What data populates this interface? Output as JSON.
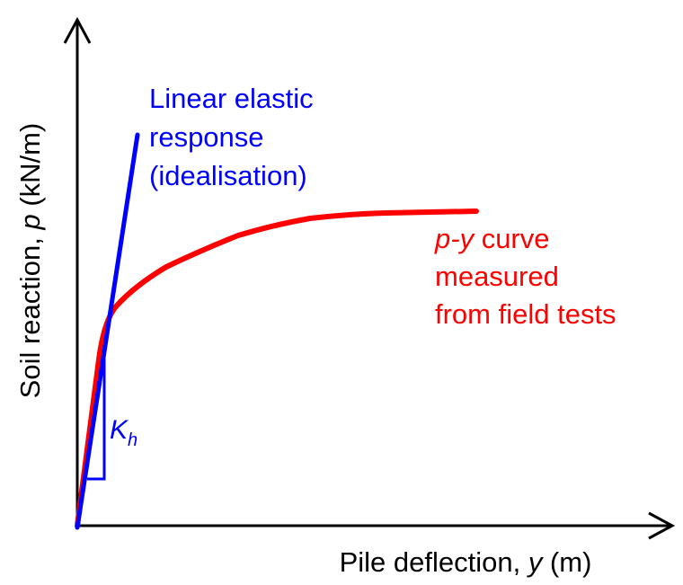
{
  "axes": {
    "x_label": [
      "Pile deflection, ",
      "y",
      " (m)"
    ],
    "y_label": [
      "Soil reaction, ",
      "p",
      " (kN/m)"
    ]
  },
  "linear": {
    "label": [
      "Linear elastic",
      "response",
      "(idealisation)"
    ],
    "slope_label": "K",
    "slope_sub": "h",
    "color": "#0000ff"
  },
  "curve": {
    "label_line1": [
      "p-y",
      " curve"
    ],
    "label_line2": "measured",
    "label_line3": "from field tests",
    "color": "#ff0000"
  }
}
